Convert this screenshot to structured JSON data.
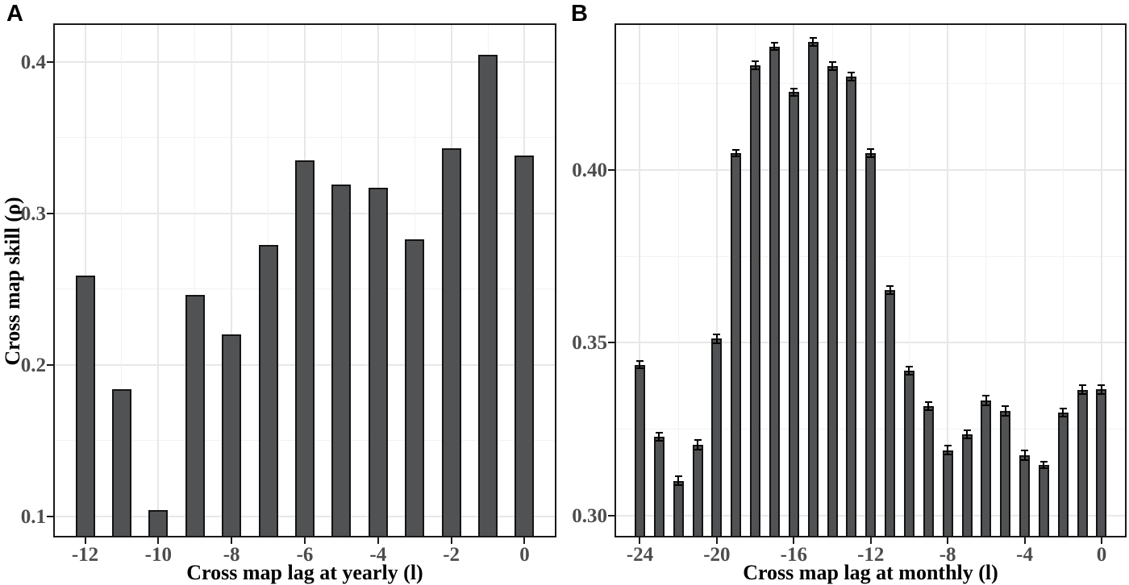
{
  "style": {
    "bar_fill": "#505254",
    "bar_stroke": "#141414",
    "error_color": "#000000",
    "grid_major": "#e7e7e7",
    "grid_minor": "#f2f2f2",
    "frame_color": "#1a1a1a",
    "tick_label_color": "#4d4d4d",
    "axis_title_color": "#000000",
    "background": "#ffffff"
  },
  "chart_data": [
    {
      "id": "A",
      "panel_label": "A",
      "type": "bar",
      "xlabel": "Cross map lag at yearly (l)",
      "ylabel": "Cross map skill (ρ)",
      "categories": [
        -12,
        -11,
        -10,
        -9,
        -8,
        -7,
        -6,
        -5,
        -4,
        -3,
        -2,
        -1,
        0
      ],
      "values": [
        0.259,
        0.184,
        0.104,
        0.246,
        0.22,
        0.279,
        0.335,
        0.319,
        0.317,
        0.283,
        0.343,
        0.405,
        0.338
      ],
      "errors": null,
      "xticks": [
        -12,
        -10,
        -8,
        -6,
        -4,
        -2,
        0
      ],
      "xtick_labels": [
        "-12",
        "-10",
        "-8",
        "-6",
        "-4",
        "-2",
        "0"
      ],
      "yticks": [
        0.1,
        0.2,
        0.3,
        0.4
      ],
      "ytick_labels": [
        "0.1",
        "0.2",
        "0.3",
        "0.4"
      ],
      "xlim": [
        -12.87,
        0.87
      ],
      "ylim": [
        0.086,
        0.4255
      ],
      "grid": true,
      "legend": false
    },
    {
      "id": "B",
      "panel_label": "B",
      "type": "bar",
      "xlabel": "Cross map lag at monthly (l)",
      "ylabel": "",
      "categories": [
        -24,
        -23,
        -22,
        -21,
        -20,
        -19,
        -18,
        -17,
        -16,
        -15,
        -14,
        -13,
        -12,
        -11,
        -10,
        -9,
        -8,
        -7,
        -6,
        -5,
        -4,
        -3,
        -2,
        -1,
        0
      ],
      "values": [
        0.3436,
        0.3228,
        0.31,
        0.3205,
        0.3512,
        0.4049,
        0.4304,
        0.4358,
        0.4226,
        0.4372,
        0.4302,
        0.4271,
        0.4049,
        0.3652,
        0.3419,
        0.3316,
        0.3189,
        0.3234,
        0.3333,
        0.3302,
        0.3175,
        0.3146,
        0.3298,
        0.3364,
        0.3365
      ],
      "errors": [
        0.001,
        0.0012,
        0.0013,
        0.0014,
        0.0013,
        0.001,
        0.0011,
        0.001,
        0.0011,
        0.0012,
        0.0012,
        0.0011,
        0.0012,
        0.0012,
        0.0012,
        0.0011,
        0.0013,
        0.0012,
        0.0014,
        0.0014,
        0.0014,
        0.001,
        0.0012,
        0.0013,
        0.0013
      ],
      "xticks": [
        -24,
        -20,
        -16,
        -12,
        -8,
        -4,
        0
      ],
      "xtick_labels": [
        "-24",
        "-20",
        "-16",
        "-12",
        "-8",
        "-4",
        "0"
      ],
      "yticks": [
        0.3,
        0.35,
        0.4
      ],
      "ytick_labels": [
        "0.30",
        "0.35",
        "0.40"
      ],
      "xlim": [
        -25.32,
        1.3
      ],
      "ylim": [
        0.2936,
        0.4425
      ],
      "grid": true,
      "legend": false
    }
  ]
}
